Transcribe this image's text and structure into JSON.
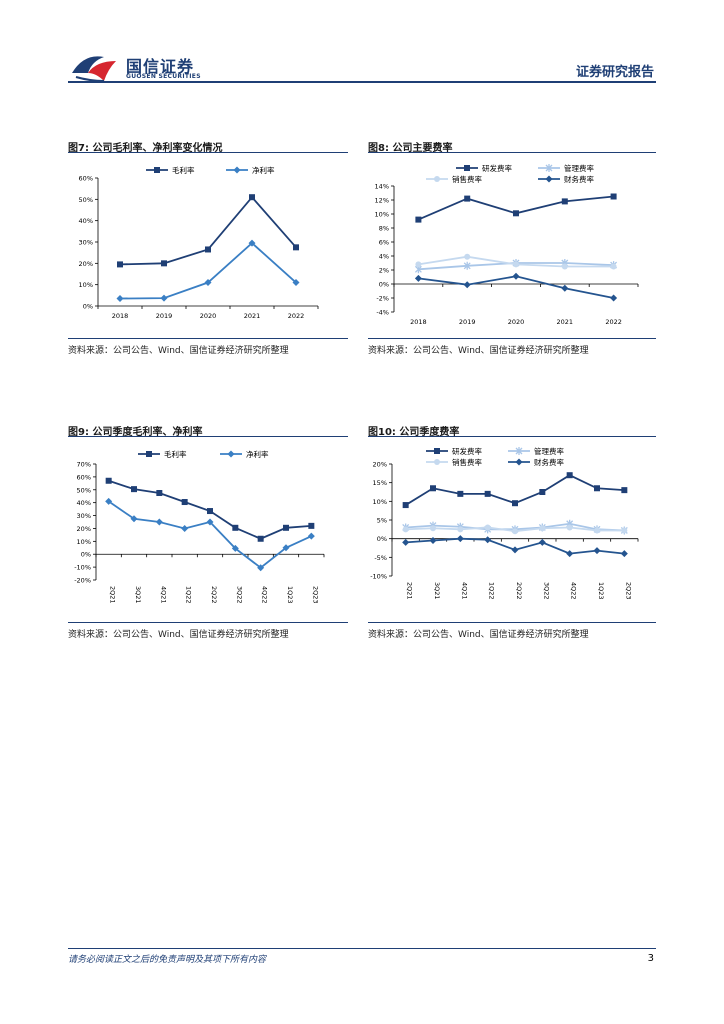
{
  "header": {
    "brand_cn": "国信证券",
    "brand_en": "GUOSEN SECURITIES",
    "report_type": "证券研究报告",
    "brand_color": "#1f3f75"
  },
  "figures": [
    {
      "title": "图7: 公司毛利率、净利率变化情况",
      "source": "资料来源：公司公告、Wind、国信证券经济研究所整理"
    },
    {
      "title": "图8: 公司主要费率",
      "source": "资料来源：公司公告、Wind、国信证券经济研究所整理"
    },
    {
      "title": "图9: 公司季度毛利率、净利率",
      "source": "资料来源：公司公告、Wind、国信证券经济研究所整理"
    },
    {
      "title": "图10: 公司季度费率",
      "source": "资料来源：公司公告、Wind、国信证券经济研究所整理"
    }
  ],
  "chart_data": [
    {
      "type": "line",
      "title": "图7: 公司毛利率、净利率变化情况",
      "categories": [
        "2018",
        "2019",
        "2020",
        "2021",
        "2022"
      ],
      "y_ticks": [
        "0%",
        "10%",
        "20%",
        "30%",
        "40%",
        "50%",
        "60%"
      ],
      "ylim": [
        0,
        60
      ],
      "series": [
        {
          "name": "毛利率",
          "values": [
            19.5,
            20,
            26.5,
            51,
            27.5
          ],
          "color": "#1f3f75",
          "marker": "square"
        },
        {
          "name": "净利率",
          "values": [
            3.5,
            3.7,
            11,
            29.5,
            11
          ],
          "color": "#3a7fc4",
          "marker": "diamond"
        }
      ]
    },
    {
      "type": "line",
      "title": "图8: 公司主要费率",
      "categories": [
        "2018",
        "2019",
        "2020",
        "2021",
        "2022"
      ],
      "y_ticks": [
        "-4%",
        "-2%",
        "0%",
        "2%",
        "4%",
        "6%",
        "8%",
        "10%",
        "12%",
        "14%"
      ],
      "ylim": [
        -4,
        14
      ],
      "series": [
        {
          "name": "研发费率",
          "values": [
            9.2,
            12.2,
            10.1,
            11.8,
            12.5
          ],
          "color": "#1f3f75",
          "marker": "square"
        },
        {
          "name": "管理费率",
          "values": [
            2.1,
            2.6,
            3.0,
            3.0,
            2.7
          ],
          "color": "#a9c6e8",
          "marker": "star"
        },
        {
          "name": "销售费率",
          "values": [
            2.8,
            3.9,
            2.8,
            2.5,
            2.5
          ],
          "color": "#c5d9ef",
          "marker": "circle"
        },
        {
          "name": "财务费率",
          "values": [
            0.8,
            -0.1,
            1.1,
            -0.6,
            -2.0
          ],
          "color": "#24548f",
          "marker": "diamond"
        }
      ]
    },
    {
      "type": "line",
      "title": "图9: 公司季度毛利率、净利率",
      "categories": [
        "2Q21",
        "3Q21",
        "4Q21",
        "1Q22",
        "2Q22",
        "3Q22",
        "4Q22",
        "1Q23",
        "2Q23"
      ],
      "y_ticks": [
        "-20%",
        "-10%",
        "0%",
        "10%",
        "20%",
        "30%",
        "40%",
        "50%",
        "60%",
        "70%"
      ],
      "ylim": [
        -20,
        70
      ],
      "series": [
        {
          "name": "毛利率",
          "values": [
            57,
            50.5,
            47.5,
            40.5,
            33.5,
            20.5,
            12,
            20.5,
            22
          ],
          "color": "#1f3f75",
          "marker": "square"
        },
        {
          "name": "净利率",
          "values": [
            41,
            27.5,
            25,
            20,
            25,
            4.5,
            -10.5,
            5,
            14
          ],
          "color": "#3a7fc4",
          "marker": "diamond"
        }
      ]
    },
    {
      "type": "line",
      "title": "图10: 公司季度费率",
      "categories": [
        "2Q21",
        "3Q21",
        "4Q21",
        "1Q22",
        "2Q22",
        "3Q22",
        "4Q22",
        "1Q23",
        "2Q23"
      ],
      "y_ticks": [
        "-10%",
        "-5%",
        "0%",
        "5%",
        "10%",
        "15%",
        "20%"
      ],
      "ylim": [
        -10,
        20
      ],
      "series": [
        {
          "name": "研发费率",
          "values": [
            9,
            13.5,
            12,
            12,
            9.5,
            12.5,
            17,
            13.5,
            13
          ],
          "color": "#1f3f75",
          "marker": "square"
        },
        {
          "name": "管理费率",
          "values": [
            3,
            3.5,
            3.2,
            2.5,
            2.5,
            3,
            4,
            2.5,
            2.2
          ],
          "color": "#a9c6e8",
          "marker": "star"
        },
        {
          "name": "销售费率",
          "values": [
            2.5,
            2.8,
            2.5,
            3,
            2,
            2.8,
            3,
            2.2,
            2.2
          ],
          "color": "#c5d9ef",
          "marker": "circle"
        },
        {
          "name": "财务费率",
          "values": [
            -1,
            -0.5,
            0,
            -0.3,
            -3,
            -1,
            -4,
            -3.2,
            -4
          ],
          "color": "#24548f",
          "marker": "diamond"
        }
      ]
    }
  ],
  "footer": {
    "disclaimer": "请务必阅读正文之后的免责声明及其项下所有内容",
    "page_number": "3"
  }
}
